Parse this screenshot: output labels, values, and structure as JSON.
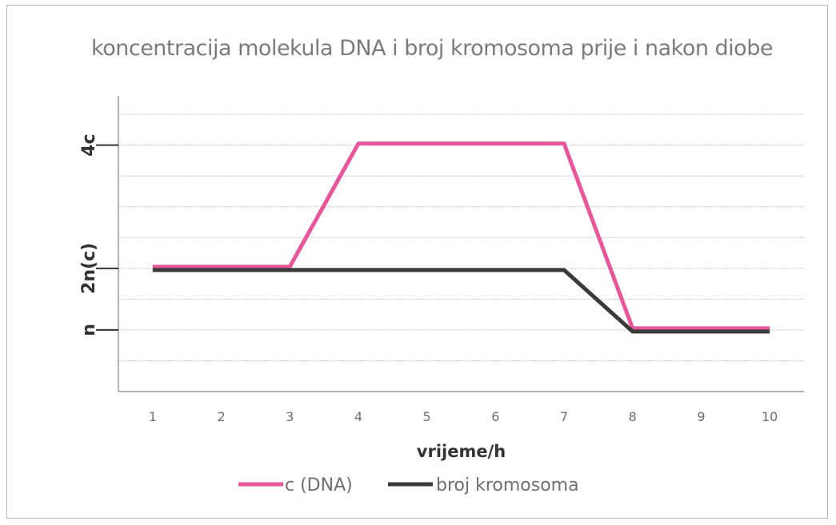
{
  "chart_data": {
    "type": "line",
    "title": "koncentracija molekula DNA i broj kromosoma prije i nakon diobe",
    "xlabel": "vrijeme/h",
    "ylabel": "",
    "x": [
      1,
      2,
      3,
      4,
      5,
      6,
      7,
      8,
      9,
      10
    ],
    "y_ticks": [
      {
        "value": 1,
        "label": "n"
      },
      {
        "value": 2,
        "label": "2n(c)"
      },
      {
        "value": 4,
        "label": "4c"
      }
    ],
    "ylim": [
      0,
      4.8
    ],
    "grid": true,
    "legend_position": "bottom",
    "series": [
      {
        "name": "c (DNA)",
        "color": "#e8559b",
        "values": [
          2,
          2,
          2,
          4,
          4,
          4,
          4,
          1,
          1,
          1
        ]
      },
      {
        "name": "broj kromosoma",
        "color": "#3a3a3a",
        "values": [
          2,
          2,
          2,
          2,
          2,
          2,
          2,
          1,
          1,
          1
        ]
      }
    ]
  }
}
